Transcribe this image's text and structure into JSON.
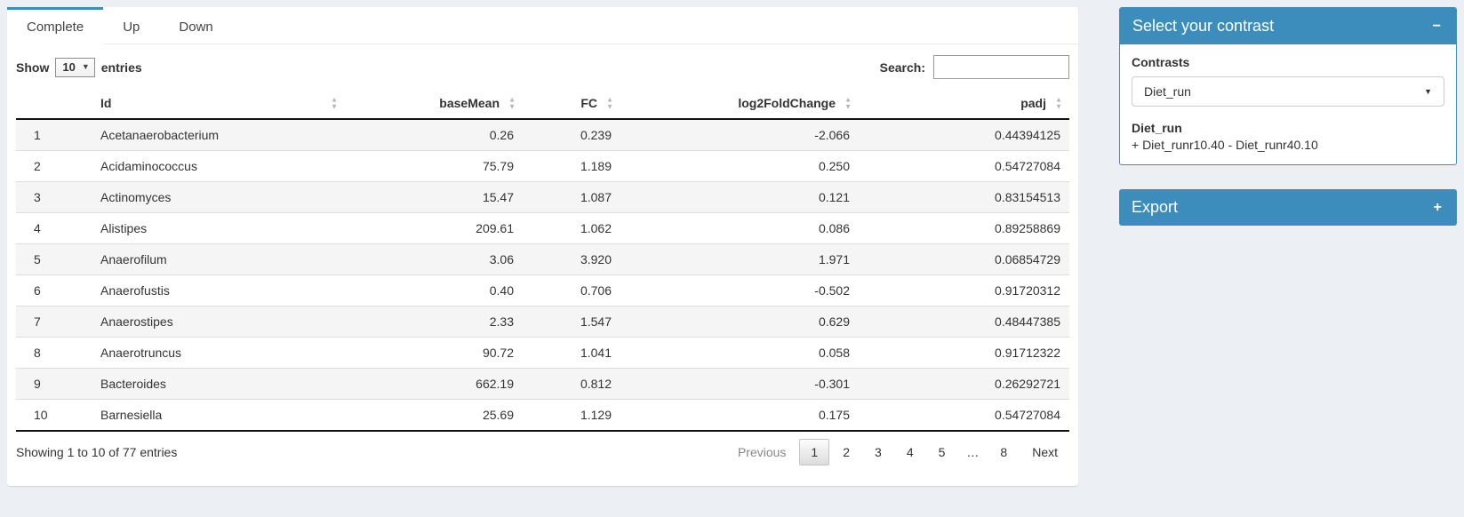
{
  "colors": {
    "primary": "#3c8dbc",
    "page_bg": "#ecf0f5"
  },
  "tabs": [
    {
      "label": "Complete",
      "active": true
    },
    {
      "label": "Up",
      "active": false
    },
    {
      "label": "Down",
      "active": false
    }
  ],
  "length_control": {
    "prefix": "Show",
    "value": "10",
    "suffix": "entries"
  },
  "search": {
    "label": "Search:",
    "value": ""
  },
  "table": {
    "columns": [
      {
        "key": "rownum",
        "label": "",
        "align": "left",
        "sortable": false
      },
      {
        "key": "id",
        "label": "Id",
        "align": "left",
        "sortable": true
      },
      {
        "key": "baseMean",
        "label": "baseMean",
        "align": "right",
        "sortable": true
      },
      {
        "key": "fc",
        "label": "FC",
        "align": "right",
        "sortable": true
      },
      {
        "key": "log2FoldChange",
        "label": "log2FoldChange",
        "align": "right",
        "sortable": true
      },
      {
        "key": "padj",
        "label": "padj",
        "align": "right",
        "sortable": true
      }
    ],
    "rows": [
      [
        "1",
        "Acetanaerobacterium",
        "0.26",
        "0.239",
        "-2.066",
        "0.44394125"
      ],
      [
        "2",
        "Acidaminococcus",
        "75.79",
        "1.189",
        "0.250",
        "0.54727084"
      ],
      [
        "3",
        "Actinomyces",
        "15.47",
        "1.087",
        "0.121",
        "0.83154513"
      ],
      [
        "4",
        "Alistipes",
        "209.61",
        "1.062",
        "0.086",
        "0.89258869"
      ],
      [
        "5",
        "Anaerofilum",
        "3.06",
        "3.920",
        "1.971",
        "0.06854729"
      ],
      [
        "6",
        "Anaerofustis",
        "0.40",
        "0.706",
        "-0.502",
        "0.91720312"
      ],
      [
        "7",
        "Anaerostipes",
        "2.33",
        "1.547",
        "0.629",
        "0.48447385"
      ],
      [
        "8",
        "Anaerotruncus",
        "90.72",
        "1.041",
        "0.058",
        "0.91712322"
      ],
      [
        "9",
        "Bacteroides",
        "662.19",
        "0.812",
        "-0.301",
        "0.26292721"
      ],
      [
        "10",
        "Barnesiella",
        "25.69",
        "1.129",
        "0.175",
        "0.54727084"
      ]
    ]
  },
  "footer": {
    "info": "Showing 1 to 10 of 77 entries",
    "pagination": {
      "previous": "Previous",
      "pages": [
        "1",
        "2",
        "3",
        "4",
        "5",
        "…",
        "8"
      ],
      "current": "1",
      "next": "Next"
    }
  },
  "contrast_box": {
    "title": "Select your contrast",
    "collapse_icon": "−",
    "label": "Contrasts",
    "selected": "Diet_run",
    "detail_title": "Diet_run",
    "detail_text": "+ Diet_runr10.40 - Diet_runr40.10"
  },
  "export_box": {
    "title": "Export",
    "collapse_icon": "+"
  }
}
